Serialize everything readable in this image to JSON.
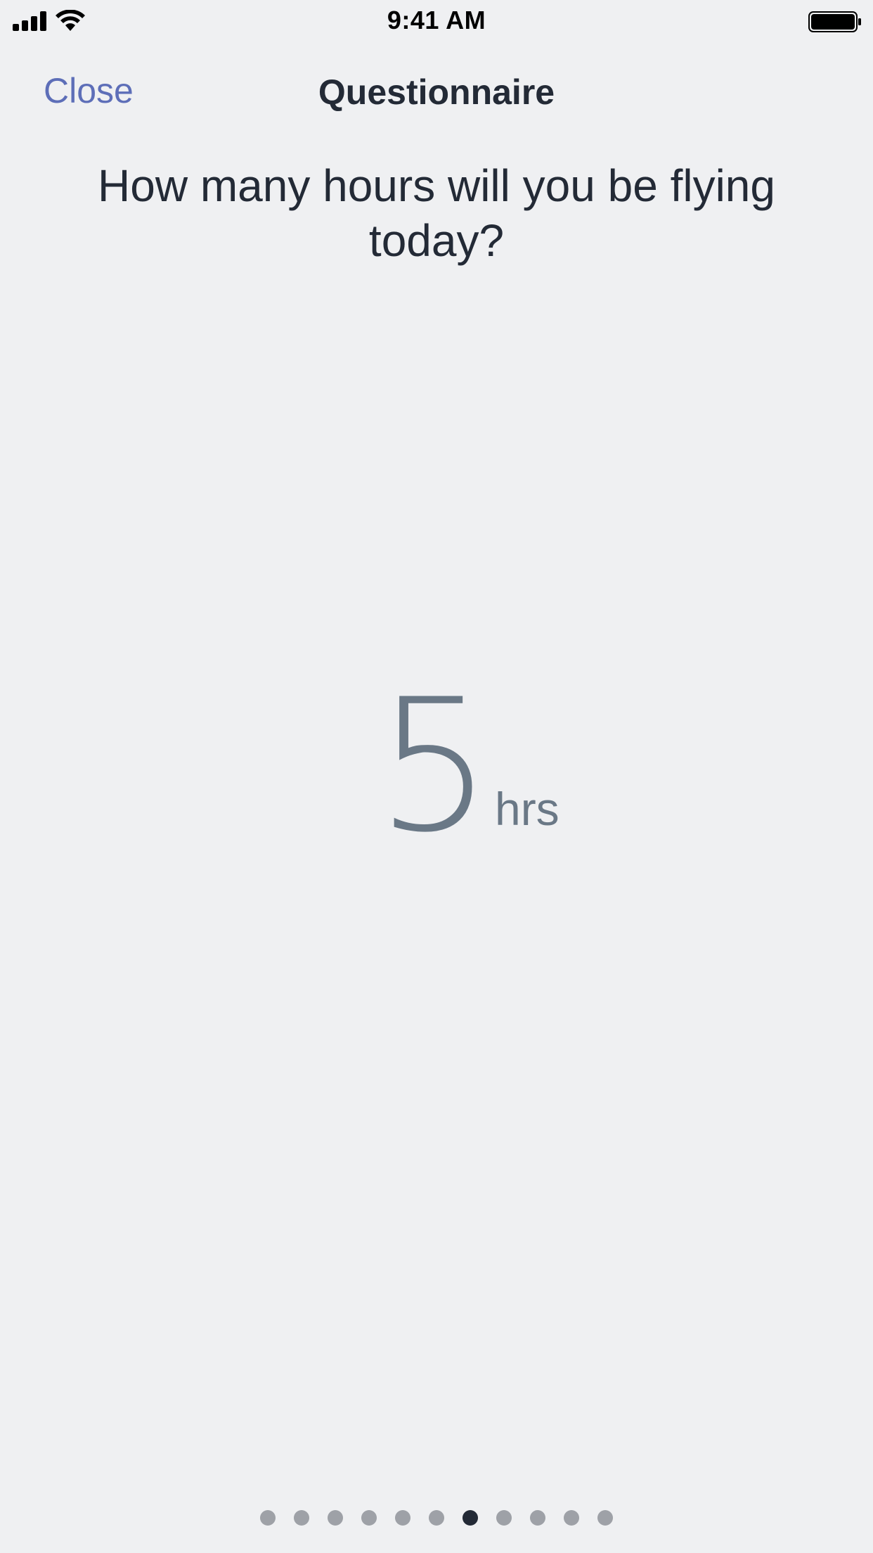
{
  "status_bar": {
    "time": "9:41 AM",
    "signal_icon": "cellular-signal-icon",
    "wifi_icon": "wifi-icon",
    "battery_icon": "battery-icon"
  },
  "nav": {
    "close_label": "Close",
    "title": "Questionnaire"
  },
  "question": {
    "text": "How many hours will you be flying today?"
  },
  "answer": {
    "value": "5",
    "unit": "hrs"
  },
  "pagination": {
    "total": 11,
    "current": 7
  },
  "colors": {
    "background": "#eff0f2",
    "accent": "#5d6eb8",
    "text": "#232a36",
    "value": "#6a7886",
    "dot_inactive": "#9ea1a7",
    "dot_active": "#232a36"
  }
}
